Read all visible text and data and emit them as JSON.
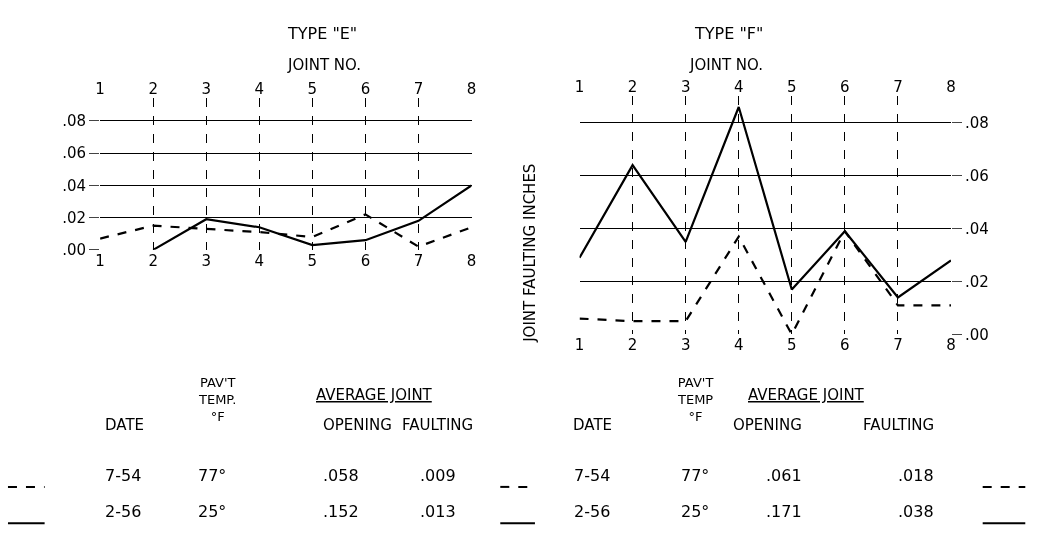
{
  "chart_data": [
    {
      "type": "line",
      "title": "TYPE \"E\"",
      "x2label": "JOINT NO.",
      "ylabel": "JOINT FAULTING INCHES",
      "x": [
        1,
        2,
        3,
        4,
        5,
        6,
        7,
        8
      ],
      "xlim": [
        1,
        8
      ],
      "xticks": [
        1,
        2,
        3,
        4,
        5,
        6,
        7,
        8
      ],
      "x2lim": [
        1,
        8
      ],
      "x2ticks": [
        1,
        2,
        3,
        4,
        5,
        6,
        7,
        8
      ],
      "ylim": [
        0,
        0.094
      ],
      "yticks": [
        {
          "value": 0,
          "label": ".00"
        },
        {
          "value": 0.02,
          "label": ".02"
        },
        {
          "value": 0.04,
          "label": ".04"
        },
        {
          "value": 0.06,
          "label": ".06"
        },
        {
          "value": 0.08,
          "label": ".08"
        }
      ],
      "grid": true,
      "marker": "none",
      "series": [
        {
          "color": "#000000",
          "line_style": "dashed",
          "values": [
            0.007,
            0.015,
            0.013,
            0.011,
            0.008,
            0.022,
            0.002,
            0.014
          ]
        },
        {
          "color": "#000000",
          "line_style": "solid",
          "values": [
            null,
            0.0,
            0.019,
            0.014,
            0.003,
            0.006,
            0.018,
            0.04
          ]
        }
      ],
      "annotations": [
        "DATE",
        "PAV'T\nTEMP.\n°F",
        "AVERAGE JOINT",
        "OPENING",
        "FAULTING",
        "7-54",
        "77°",
        ".058",
        ".009",
        "2-56",
        "25°",
        ".152",
        ".013"
      ]
    },
    {
      "type": "line",
      "title": "TYPE \"F\"",
      "x2label": "JOINT NO.",
      "x": [
        1,
        2,
        3,
        4,
        5,
        6,
        7,
        8
      ],
      "xlim": [
        1,
        8
      ],
      "xticks": [
        1,
        2,
        3,
        4,
        5,
        6,
        7,
        8
      ],
      "x2lim": [
        1,
        8
      ],
      "x2ticks": [
        1,
        2,
        3,
        4,
        5,
        6,
        7,
        8
      ],
      "ylim": [
        0,
        0.09
      ],
      "yticks": [
        {
          "value": 0,
          "label": ".00"
        },
        {
          "value": 0.02,
          "label": ".02"
        },
        {
          "value": 0.04,
          "label": ".04"
        },
        {
          "value": 0.06,
          "label": ".06"
        },
        {
          "value": 0.08,
          "label": ".08"
        }
      ],
      "grid": true,
      "marker": "none",
      "series": [
        {
          "color": "#000000",
          "line_style": "dashed",
          "values": [
            0.006,
            0.005,
            0.005,
            0.037,
            0.0,
            0.039,
            0.011,
            0.011
          ]
        },
        {
          "color": "#000000",
          "line_style": "solid",
          "values": [
            0.029,
            0.064,
            0.035,
            0.086,
            0.017,
            0.039,
            0.014,
            0.028
          ]
        }
      ],
      "annotations": [
        "DATE",
        "PAV'T\nTEMP\n°F",
        "AVERAGE JOINT",
        "OPENING",
        "FAULTING",
        "7-54",
        "77°",
        ".061",
        ".018",
        "2-56",
        "25°",
        ".171",
        ".038"
      ]
    }
  ]
}
